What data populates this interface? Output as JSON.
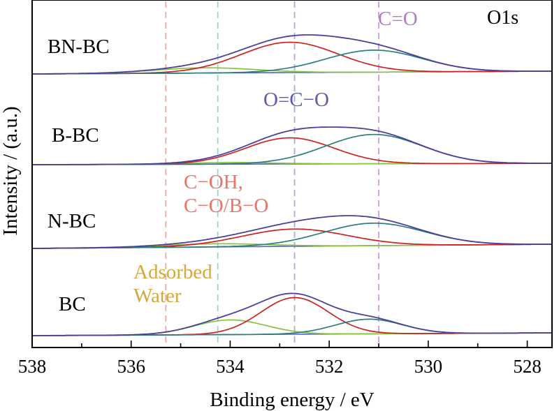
{
  "chart_data": {
    "type": "line",
    "title": "O1s",
    "xlabel": "Binding energy / eV",
    "ylabel": "Intensity / (a.u.)",
    "xlim": [
      538,
      527.5
    ],
    "x_reversed": true,
    "xticks": [
      538,
      536,
      534,
      532,
      530,
      528
    ],
    "grid": false,
    "reference_lines": [
      {
        "x": 535.3,
        "color": "#f4a6a0",
        "style": "dashed"
      },
      {
        "x": 534.25,
        "color": "#9fd4c6",
        "style": "dashed"
      },
      {
        "x": 532.7,
        "color": "#aaaae0",
        "style": "dashed"
      },
      {
        "x": 531.0,
        "color": "#c9a0dc",
        "style": "dashed"
      }
    ],
    "annotations": [
      {
        "lines": [
          "C=O"
        ],
        "color": "#b07fc8"
      },
      {
        "lines": [
          "O=C−O"
        ],
        "color": "#5c5caf"
      },
      {
        "lines": [
          "C−OH,",
          "C−O/B−O"
        ],
        "color": "#e8756c"
      },
      {
        "lines": [
          "Adsorbed",
          "Water"
        ],
        "color": "#d4a93c"
      }
    ],
    "colors": {
      "envelope": "#4b3f9c",
      "background": "#5566bb",
      "water": "#88c33a",
      "c_oh": "#cc2222",
      "oco": "#2e7d7d"
    },
    "samples": [
      {
        "name": "BN-BC",
        "peaks": [
          {
            "component": "water",
            "center": 534.5,
            "fwhm": 2.4,
            "height": 10
          },
          {
            "component": "c_oh",
            "center": 532.8,
            "fwhm": 2.3,
            "height": 58
          },
          {
            "component": "oco",
            "center": 531.1,
            "fwhm": 2.3,
            "height": 42
          }
        ]
      },
      {
        "name": "B-BC",
        "peaks": [
          {
            "component": "water",
            "center": 534.0,
            "fwhm": 2.2,
            "height": 3
          },
          {
            "component": "c_oh",
            "center": 532.8,
            "fwhm": 2.1,
            "height": 50
          },
          {
            "component": "oco",
            "center": 531.1,
            "fwhm": 2.3,
            "height": 56
          }
        ]
      },
      {
        "name": "N-BC",
        "peaks": [
          {
            "component": "water",
            "center": 534.3,
            "fwhm": 2.5,
            "height": 6
          },
          {
            "component": "c_oh",
            "center": 532.7,
            "fwhm": 2.5,
            "height": 33
          },
          {
            "component": "oco",
            "center": 531.1,
            "fwhm": 2.4,
            "height": 43
          }
        ]
      },
      {
        "name": "BC",
        "peaks": [
          {
            "component": "water",
            "center": 534.0,
            "fwhm": 1.7,
            "height": 28
          },
          {
            "component": "c_oh",
            "center": 532.7,
            "fwhm": 1.6,
            "height": 70
          },
          {
            "component": "oco",
            "center": 531.2,
            "fwhm": 1.6,
            "height": 28
          }
        ]
      }
    ]
  }
}
